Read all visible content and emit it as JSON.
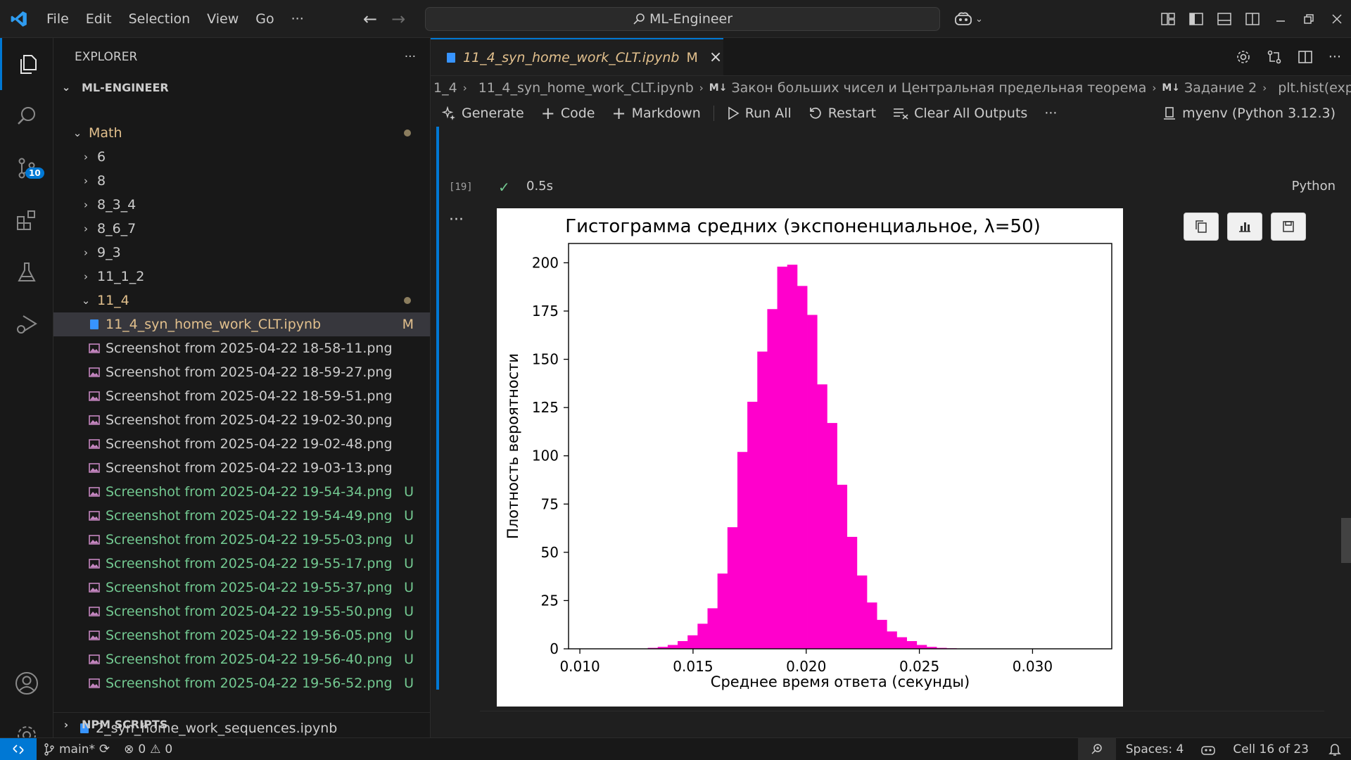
{
  "titlebar": {
    "menu": [
      "File",
      "Edit",
      "Selection",
      "View",
      "Go"
    ],
    "more": "···",
    "search": "ML-Engineer"
  },
  "activity": {
    "scm_badge": "10"
  },
  "explorer": {
    "title": "EXPLORER",
    "more": "···",
    "root": "ML-ENGINEER",
    "folders": [
      "Math",
      "6",
      "8",
      "8_3_4",
      "8_6_7",
      "9_3",
      "11_1_2",
      "11_4"
    ],
    "selected_file": "11_4_syn_home_work_CLT.ipynb",
    "selected_status": "M",
    "files": [
      {
        "name": "Screenshot from 2025-04-22 18-58-11.png",
        "status": ""
      },
      {
        "name": "Screenshot from 2025-04-22 18-59-27.png",
        "status": ""
      },
      {
        "name": "Screenshot from 2025-04-22 18-59-51.png",
        "status": ""
      },
      {
        "name": "Screenshot from 2025-04-22 19-02-30.png",
        "status": ""
      },
      {
        "name": "Screenshot from 2025-04-22 19-02-48.png",
        "status": ""
      },
      {
        "name": "Screenshot from 2025-04-22 19-03-13.png",
        "status": ""
      },
      {
        "name": "Screenshot from 2025-04-22 19-54-34.png",
        "status": "U"
      },
      {
        "name": "Screenshot from 2025-04-22 19-54-49.png",
        "status": "U"
      },
      {
        "name": "Screenshot from 2025-04-22 19-55-03.png",
        "status": "U"
      },
      {
        "name": "Screenshot from 2025-04-22 19-55-17.png",
        "status": "U"
      },
      {
        "name": "Screenshot from 2025-04-22 19-55-37.png",
        "status": "U"
      },
      {
        "name": "Screenshot from 2025-04-22 19-55-50.png",
        "status": "U"
      },
      {
        "name": "Screenshot from 2025-04-22 19-56-05.png",
        "status": "U"
      },
      {
        "name": "Screenshot from 2025-04-22 19-56-40.png",
        "status": "U"
      },
      {
        "name": "Screenshot from 2025-04-22 19-56-52.png",
        "status": "U"
      }
    ],
    "other_file": "2_syn_home_work_sequences.ipynb",
    "npm": "NPM SCRIPTS"
  },
  "editor": {
    "tab_label": "11_4_syn_home_work_CLT.ipynb",
    "tab_status": "M",
    "breadcrumb": [
      "1_4",
      "11_4_syn_home_work_CLT.ipynb",
      "Закон больших чисел и Центральная предельная теорема",
      "Задание 2",
      "plt.hist(exp"
    ],
    "toolbar": {
      "generate": "Generate",
      "code": "Code",
      "markdown": "Markdown",
      "run_all": "Run All",
      "restart": "Restart",
      "clear": "Clear All Outputs",
      "more": "···",
      "kernel": "myenv (Python 3.12.3)"
    },
    "cell": {
      "exec_count": "[19]",
      "exec_time": "0.5s",
      "language": "Python",
      "output_more": "···"
    }
  },
  "chart_data": {
    "type": "bar",
    "title": "Гистограмма средних (экспоненциальное, λ=50)",
    "xlabel": "Среднее время ответа (секунды)",
    "ylabel": "Плотность вероятности",
    "xlim": [
      0.0095,
      0.0335
    ],
    "ylim": [
      0,
      210
    ],
    "xticks": [
      "0.010",
      "0.015",
      "0.020",
      "0.025",
      "0.030"
    ],
    "yticks": [
      "0",
      "25",
      "50",
      "75",
      "100",
      "125",
      "150",
      "175",
      "200"
    ],
    "color": "#ff00cc",
    "bin_start": 0.013,
    "bin_width": 0.00044,
    "values": [
      0.5,
      1,
      2,
      4,
      7,
      13,
      21,
      39,
      63,
      102,
      128,
      154,
      176,
      198,
      199,
      188,
      173,
      137,
      117,
      85,
      58,
      38,
      24,
      15,
      9,
      6,
      4,
      2,
      1,
      0.5,
      0.3
    ]
  },
  "statusbar": {
    "branch": "main*",
    "errors": "0",
    "warnings": "0",
    "spaces": "Spaces: 4",
    "cell": "Cell 16 of 23"
  }
}
